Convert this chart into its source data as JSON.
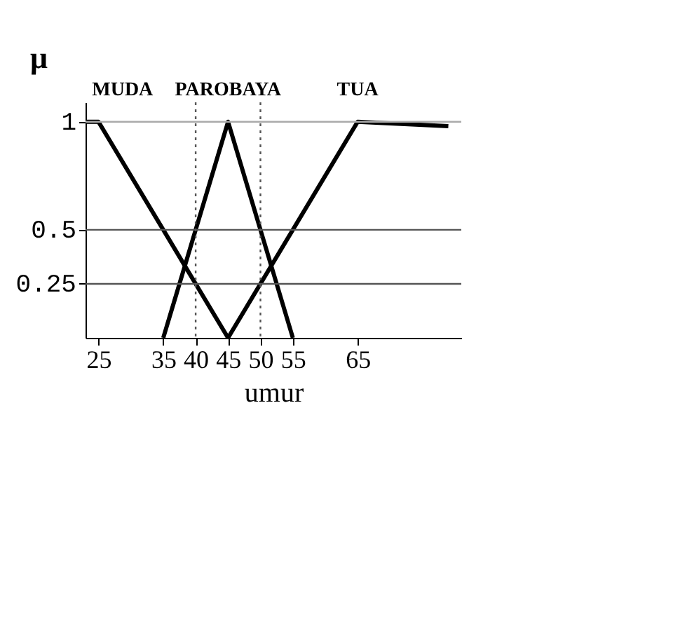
{
  "chart_data": {
    "type": "line",
    "xlabel": "umur",
    "ylabel": "μ",
    "series": [
      {
        "name": "MUDA",
        "color": "#000000",
        "x": [
          23,
          25,
          45
        ],
        "values": [
          1,
          1,
          0
        ]
      },
      {
        "name": "PAROBAYA",
        "color": "#000000",
        "x": [
          35,
          45,
          55
        ],
        "values": [
          0,
          1,
          0
        ]
      },
      {
        "name": "TUA",
        "color": "#000000",
        "x": [
          45,
          65,
          79
        ],
        "values": [
          0,
          1,
          0.98
        ]
      }
    ],
    "xlim": [
      23,
      81
    ],
    "xticks": [
      25,
      35,
      40,
      45,
      50,
      55,
      65
    ],
    "ylim": [
      0,
      1.09
    ],
    "yticks": [
      0.25,
      0.5,
      1
    ],
    "ref_lines": [
      {
        "axis": "y",
        "value": 1,
        "color": "#aaaaaa"
      },
      {
        "axis": "y",
        "value": 0.5,
        "color": "#555555"
      },
      {
        "axis": "y",
        "value": 0.25,
        "color": "#555555"
      },
      {
        "axis": "x",
        "value": 40,
        "color": "#555555",
        "line_style": "dotted"
      },
      {
        "axis": "x",
        "value": 50,
        "color": "#555555",
        "line_style": "dotted"
      }
    ],
    "grid": false,
    "marker": "none",
    "line_style": "solid"
  }
}
